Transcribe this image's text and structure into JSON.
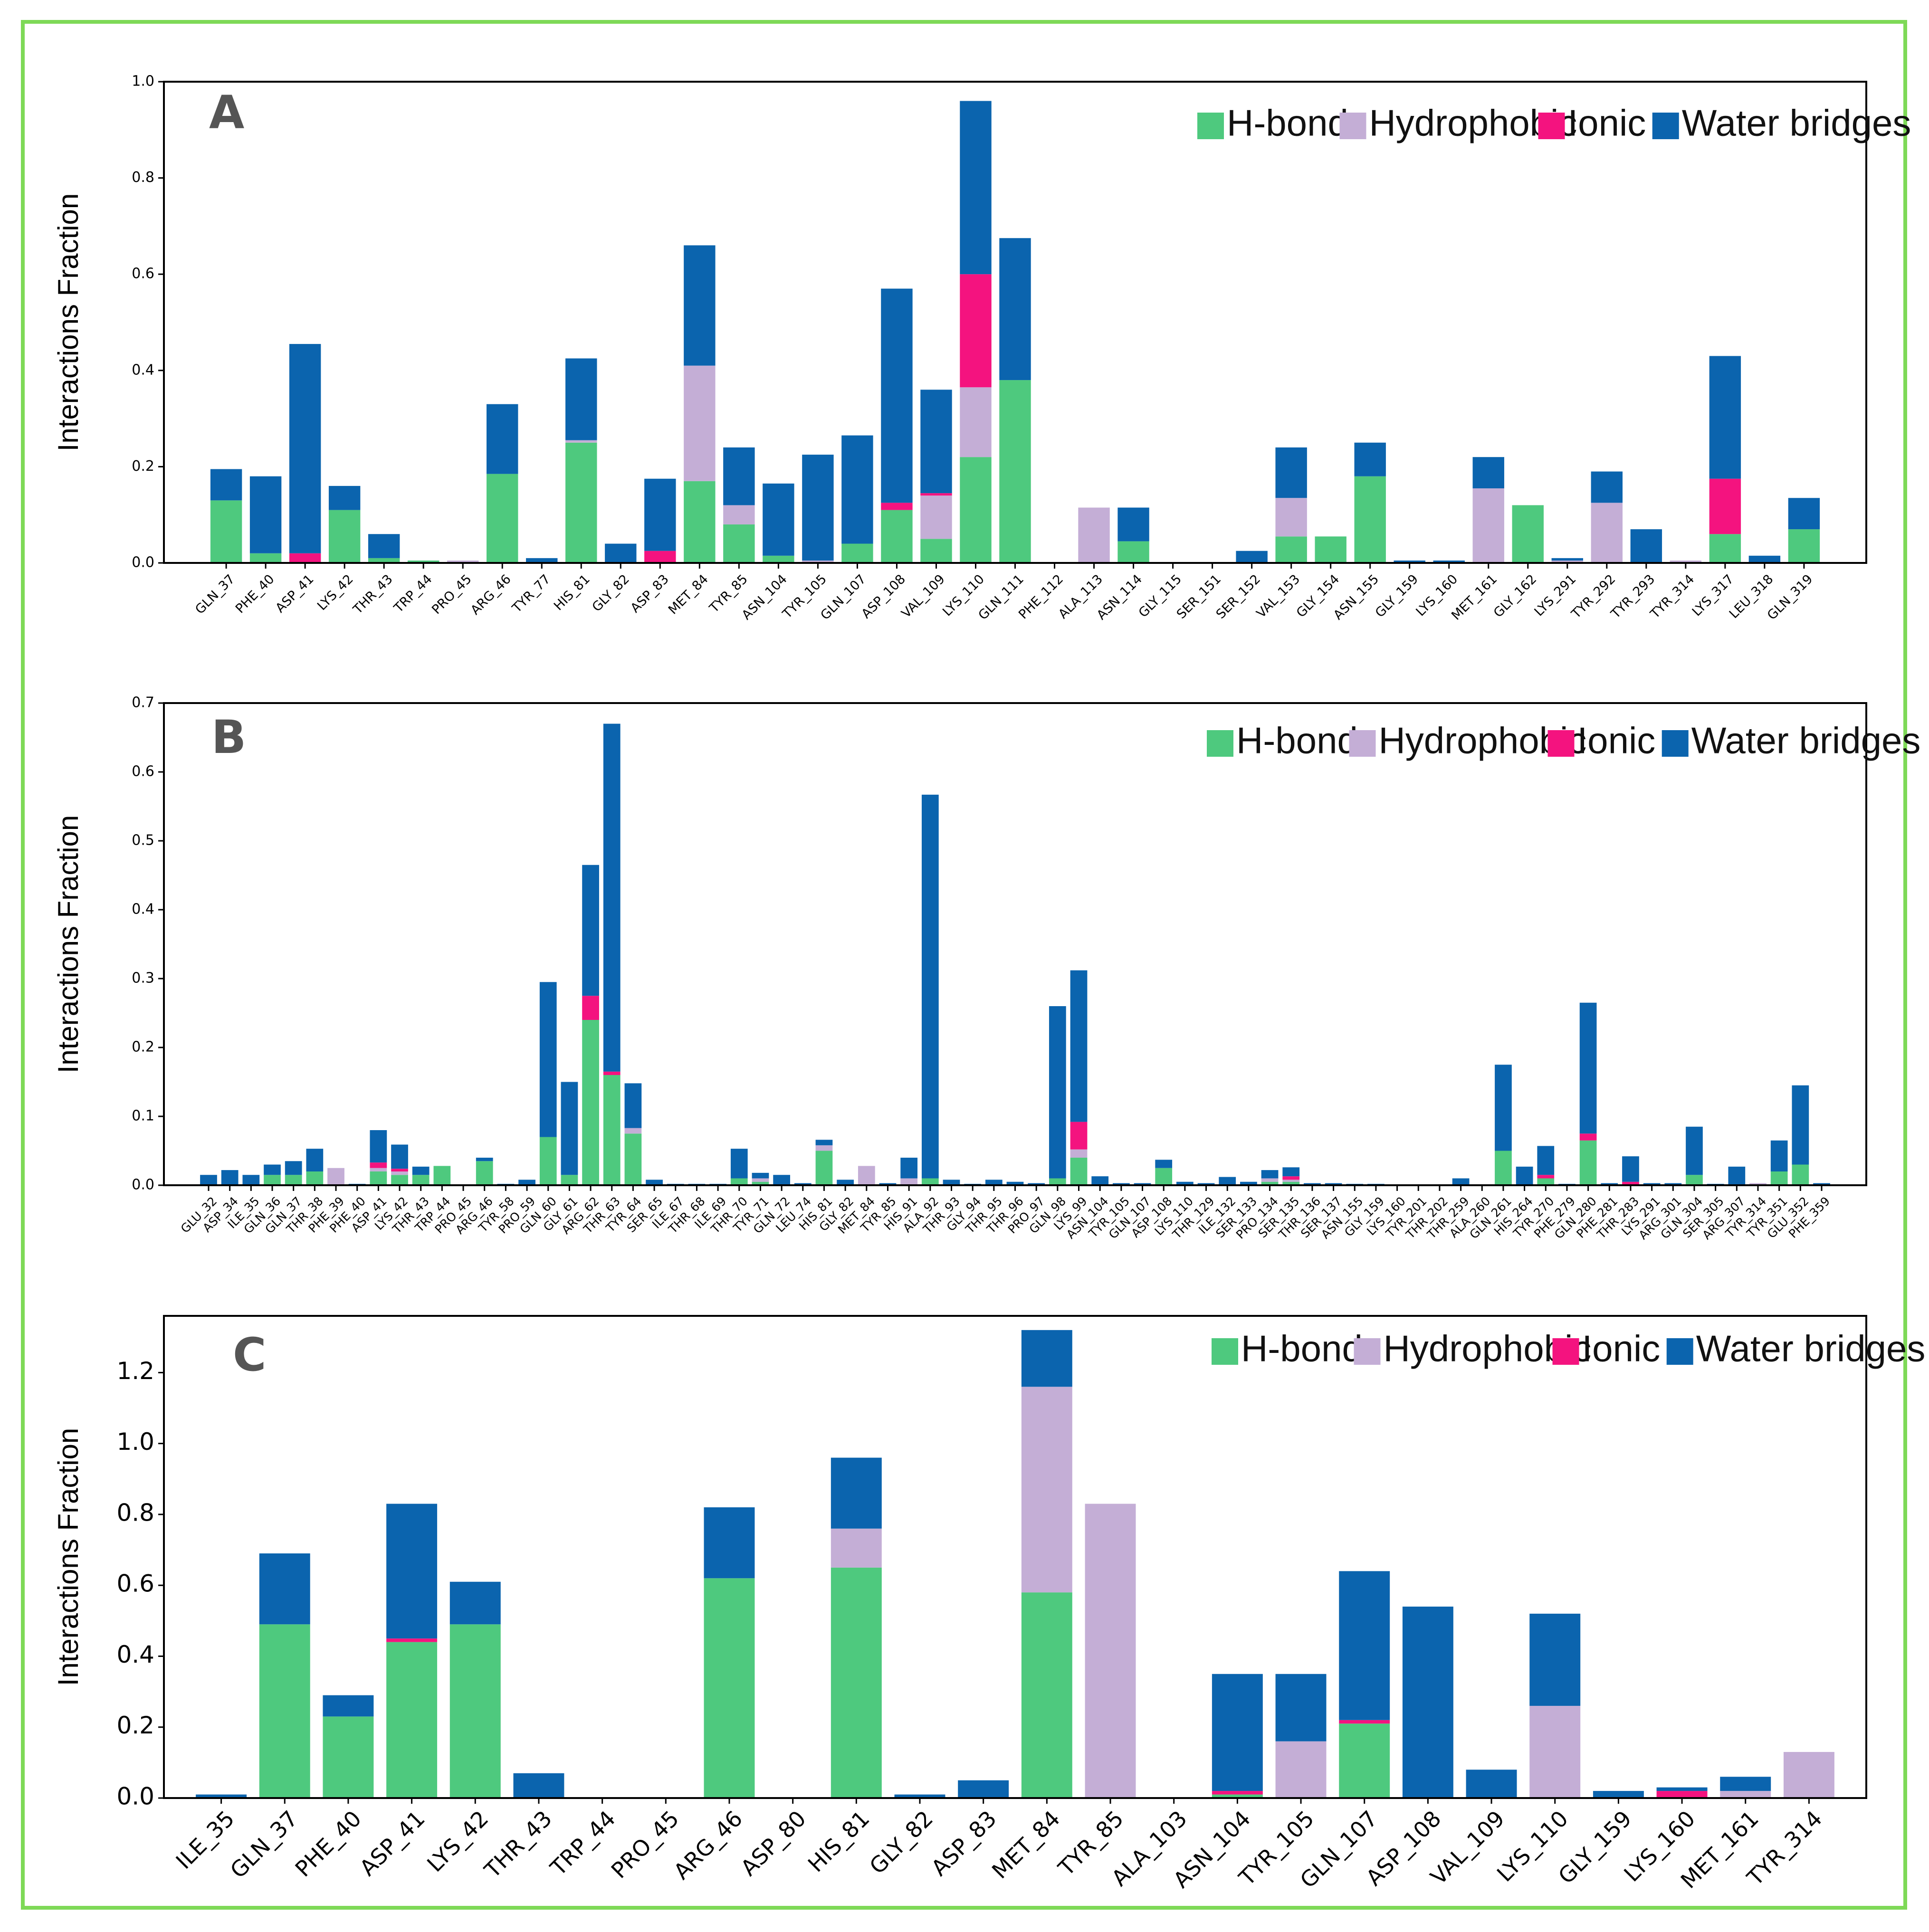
{
  "colors": {
    "frame": "#7ed957",
    "hbonds": "#4ec97e",
    "hydrophobic": "#c4aed6",
    "ionic": "#f4137f",
    "water": "#0b64ae",
    "axis": "#000000",
    "panel_label": "#555555"
  },
  "chart_data": [
    {
      "type": "bar",
      "stacked": true,
      "panel_label": "A",
      "ylabel": "Interactions Fraction",
      "ylim": [
        0,
        1.0
      ],
      "yticks": [
        "0.0",
        "0.2",
        "0.4",
        "0.6",
        "0.8",
        "1.0"
      ],
      "legend": [
        "H-bonds",
        "Hydrophobic",
        "Ionic",
        "Water bridges"
      ],
      "legend_position": "top-right",
      "categories": [
        "GLN_37",
        "PHE_40",
        "ASP_41",
        "LYS_42",
        "THR_43",
        "TRP_44",
        "PRO_45",
        "ARG_46",
        "TYR_77",
        "HIS_81",
        "GLY_82",
        "ASP_83",
        "MET_84",
        "TYR_85",
        "ASN_104",
        "TYR_105",
        "GLN_107",
        "ASP_108",
        "VAL_109",
        "LYS_110",
        "GLN_111",
        "PHE_112",
        "ALA_113",
        "ASN_114",
        "GLY_115",
        "SER_151",
        "SER_152",
        "VAL_153",
        "GLY_154",
        "ASN_155",
        "GLY_159",
        "LYS_160",
        "MET_161",
        "GLY_162",
        "LYS_291",
        "TYR_292",
        "TYR_293",
        "TYR_314",
        "LYS_317",
        "LEU_318",
        "GLN_319"
      ],
      "series": [
        {
          "name": "H-bonds",
          "values": [
            0.13,
            0.02,
            0,
            0.11,
            0.01,
            0.005,
            0,
            0.185,
            0,
            0.25,
            0,
            0,
            0.17,
            0.08,
            0.015,
            0,
            0.04,
            0.11,
            0.05,
            0.22,
            0.38,
            0,
            0,
            0.045,
            0,
            0,
            0,
            0.055,
            0.055,
            0.18,
            0,
            0,
            0,
            0.12,
            0,
            0,
            0,
            0,
            0.06,
            0,
            0.07
          ]
        },
        {
          "name": "Hydrophobic",
          "values": [
            0,
            0,
            0,
            0,
            0,
            0,
            0.005,
            0,
            0,
            0.005,
            0,
            0,
            0.24,
            0.04,
            0,
            0.005,
            0,
            0,
            0.09,
            0.145,
            0,
            0,
            0.115,
            0,
            0,
            0,
            0,
            0.08,
            0,
            0,
            0,
            0,
            0.155,
            0,
            0.005,
            0.125,
            0,
            0.005,
            0,
            0,
            0
          ]
        },
        {
          "name": "Ionic",
          "values": [
            0,
            0,
            0.02,
            0,
            0,
            0,
            0,
            0,
            0,
            0,
            0,
            0.025,
            0,
            0,
            0,
            0,
            0,
            0.015,
            0.005,
            0.235,
            0,
            0,
            0,
            0,
            0,
            0,
            0,
            0,
            0,
            0,
            0,
            0,
            0,
            0,
            0,
            0,
            0,
            0,
            0.115,
            0,
            0
          ]
        },
        {
          "name": "Water bridges",
          "values": [
            0.065,
            0.16,
            0.435,
            0.05,
            0.05,
            0,
            0,
            0.145,
            0.01,
            0.17,
            0.04,
            0.15,
            0.25,
            0.12,
            0.15,
            0.22,
            0.225,
            0.445,
            0.215,
            0.36,
            0.295,
            0,
            0,
            0.07,
            0,
            0,
            0.025,
            0.105,
            0,
            0.07,
            0.005,
            0.005,
            0.065,
            0,
            0.005,
            0.065,
            0.07,
            0,
            0.255,
            0.015,
            0.065
          ]
        }
      ]
    },
    {
      "type": "bar",
      "stacked": true,
      "panel_label": "B",
      "ylabel": "Interactions Fraction",
      "ylim": [
        0,
        0.7
      ],
      "yticks": [
        "0.0",
        "0.1",
        "0.2",
        "0.3",
        "0.4",
        "0.5",
        "0.6",
        "0.7"
      ],
      "legend": [
        "H-bonds",
        "Hydrophobic",
        "Ionic",
        "Water bridges"
      ],
      "legend_position": "top-right",
      "categories": [
        "GLU_32",
        "ASP_34",
        "ILE_35",
        "GLN_36",
        "GLN_37",
        "THR_38",
        "PHE_39",
        "PHE_40",
        "ASP_41",
        "LYS_42",
        "THR_43",
        "TRP_44",
        "PRO_45",
        "ARG_46",
        "TYR_58",
        "PRO_59",
        "GLN_60",
        "GLY_61",
        "ARG_62",
        "THR_63",
        "TYR_64",
        "SER_65",
        "ILE_67",
        "THR_68",
        "ILE_69",
        "THR_70",
        "TYR_71",
        "GLN_72",
        "LEU_74",
        "HIS_81",
        "GLY_82",
        "MET_84",
        "TYR_85",
        "HIS_91",
        "ALA_92",
        "THR_93",
        "GLY_94",
        "THR_95",
        "THR_96",
        "PRO_97",
        "GLN_98",
        "LYS_99",
        "ASN_104",
        "TYR_105",
        "GLN_107",
        "ASP_108",
        "LYS_110",
        "THR_129",
        "ILE_132",
        "SER_133",
        "PRO_134",
        "SER_135",
        "THR_136",
        "SER_137",
        "ASN_155",
        "GLY_159",
        "LYS_160",
        "TYR_201",
        "THR_202",
        "THR_259",
        "ALA_260",
        "GLN_261",
        "HIS_264",
        "TYR_270",
        "PHE_279",
        "GLN_280",
        "PHE_281",
        "THR_283",
        "LYS_291",
        "ARG_301",
        "GLN_304",
        "SER_305",
        "ARG_307",
        "TYR_314",
        "TYR_351",
        "GLU_352",
        "PHE_359"
      ],
      "series": [
        {
          "name": "H-bonds",
          "values": [
            0,
            0,
            0,
            0.015,
            0.015,
            0.02,
            0,
            0,
            0.02,
            0.015,
            0.015,
            0.028,
            0,
            0.035,
            0,
            0,
            0.07,
            0.015,
            0.24,
            0.16,
            0.075,
            0,
            0,
            0,
            0,
            0.01,
            0.005,
            0,
            0,
            0.05,
            0,
            0,
            0,
            0,
            0.01,
            0,
            0,
            0,
            0,
            0,
            0.01,
            0.04,
            0,
            0,
            0,
            0.025,
            0,
            0,
            0,
            0,
            0.005,
            0.005,
            0,
            0,
            0,
            0,
            0,
            0,
            0,
            0,
            0,
            0.05,
            0,
            0.01,
            0,
            0.065,
            0,
            0,
            0,
            0,
            0.015,
            0,
            0,
            0,
            0.02,
            0.03,
            0
          ]
        },
        {
          "name": "Hydrophobic",
          "values": [
            0,
            0,
            0,
            0,
            0,
            0,
            0.025,
            0,
            0.005,
            0.005,
            0,
            0,
            0,
            0,
            0,
            0,
            0,
            0,
            0,
            0,
            0.008,
            0,
            0,
            0,
            0,
            0,
            0.005,
            0,
            0,
            0.008,
            0,
            0.028,
            0,
            0.01,
            0,
            0,
            0,
            0,
            0,
            0,
            0,
            0.012,
            0,
            0,
            0,
            0,
            0,
            0,
            0,
            0,
            0.005,
            0.003,
            0,
            0,
            0,
            0,
            0,
            0,
            0,
            0,
            0,
            0,
            0,
            0,
            0,
            0,
            0,
            0,
            0,
            0,
            0,
            0,
            0,
            0.003,
            0,
            0,
            0
          ]
        },
        {
          "name": "Ionic",
          "values": [
            0,
            0,
            0,
            0,
            0,
            0,
            0,
            0,
            0.008,
            0.004,
            0,
            0,
            0,
            0,
            0,
            0,
            0,
            0,
            0.035,
            0.005,
            0,
            0,
            0,
            0,
            0,
            0,
            0,
            0,
            0,
            0,
            0,
            0,
            0,
            0,
            0,
            0,
            0,
            0,
            0,
            0,
            0,
            0.04,
            0,
            0,
            0,
            0,
            0,
            0,
            0,
            0,
            0,
            0.005,
            0,
            0,
            0,
            0,
            0,
            0,
            0,
            0,
            0,
            0,
            0,
            0.005,
            0,
            0.01,
            0,
            0.005,
            0,
            0,
            0,
            0,
            0,
            0,
            0,
            0,
            0
          ]
        },
        {
          "name": "Water bridges",
          "values": [
            0.015,
            0.022,
            0.015,
            0.015,
            0.02,
            0.033,
            0,
            0.002,
            0.047,
            0.035,
            0.012,
            0,
            0,
            0.005,
            0.002,
            0.008,
            0.225,
            0.135,
            0.19,
            0.505,
            0.065,
            0.008,
            0.002,
            0.002,
            0.002,
            0.043,
            0.008,
            0.015,
            0.003,
            0.008,
            0.008,
            0,
            0.003,
            0.03,
            0.557,
            0.008,
            0.002,
            0.008,
            0.005,
            0.003,
            0.25,
            0.22,
            0.013,
            0.003,
            0.003,
            0.012,
            0.005,
            0.003,
            0.012,
            0.005,
            0.012,
            0.013,
            0.003,
            0.003,
            0.002,
            0.002,
            0,
            0,
            0,
            0.01,
            0,
            0.125,
            0.027,
            0.042,
            0.002,
            0.19,
            0.003,
            0.037,
            0.003,
            0.003,
            0.07,
            0.002,
            0.027,
            0,
            0.045,
            0.115,
            0.003
          ]
        }
      ]
    },
    {
      "type": "bar",
      "stacked": true,
      "panel_label": "C",
      "ylabel": "Interactions Fraction",
      "ylim": [
        0,
        1.36
      ],
      "yticks": [
        "0.0",
        "0.2",
        "0.4",
        "0.6",
        "0.8",
        "1.0",
        "1.2"
      ],
      "legend": [
        "H-bonds",
        "Hydrophobic",
        "Ionic",
        "Water bridges"
      ],
      "legend_position": "top-right",
      "categories": [
        "ILE_35",
        "GLN_37",
        "PHE_40",
        "ASP_41",
        "LYS_42",
        "THR_43",
        "TRP_44",
        "PRO_45",
        "ARG_46",
        "ASP_80",
        "HIS_81",
        "GLY_82",
        "ASP_83",
        "MET_84",
        "TYR_85",
        "ALA_103",
        "ASN_104",
        "TYR_105",
        "GLN_107",
        "ASP_108",
        "VAL_109",
        "LYS_110",
        "GLY_159",
        "LYS_160",
        "MET_161",
        "TYR_314"
      ],
      "series": [
        {
          "name": "H-bonds",
          "values": [
            0,
            0.49,
            0.23,
            0.44,
            0.49,
            0,
            0,
            0,
            0.62,
            0,
            0.65,
            0,
            0,
            0.58,
            0,
            0,
            0.01,
            0,
            0.21,
            0,
            0,
            0,
            0,
            0,
            0,
            0
          ]
        },
        {
          "name": "Hydrophobic",
          "values": [
            0,
            0,
            0,
            0,
            0,
            0,
            0,
            0,
            0,
            0,
            0.11,
            0,
            0,
            0.58,
            0.83,
            0,
            0,
            0.16,
            0,
            0,
            0,
            0.26,
            0,
            0,
            0.02,
            0.13
          ]
        },
        {
          "name": "Ionic",
          "values": [
            0,
            0,
            0,
            0.01,
            0,
            0,
            0,
            0,
            0,
            0,
            0,
            0,
            0,
            0,
            0,
            0,
            0.01,
            0,
            0.01,
            0,
            0,
            0,
            0,
            0.02,
            0,
            0
          ]
        },
        {
          "name": "Water bridges",
          "values": [
            0.01,
            0.2,
            0.06,
            0.38,
            0.12,
            0.07,
            0,
            0,
            0.2,
            0,
            0.2,
            0.01,
            0.05,
            0.16,
            0,
            0,
            0.33,
            0.19,
            0.42,
            0.54,
            0.08,
            0.26,
            0.02,
            0.01,
            0.04,
            0
          ]
        }
      ]
    }
  ]
}
